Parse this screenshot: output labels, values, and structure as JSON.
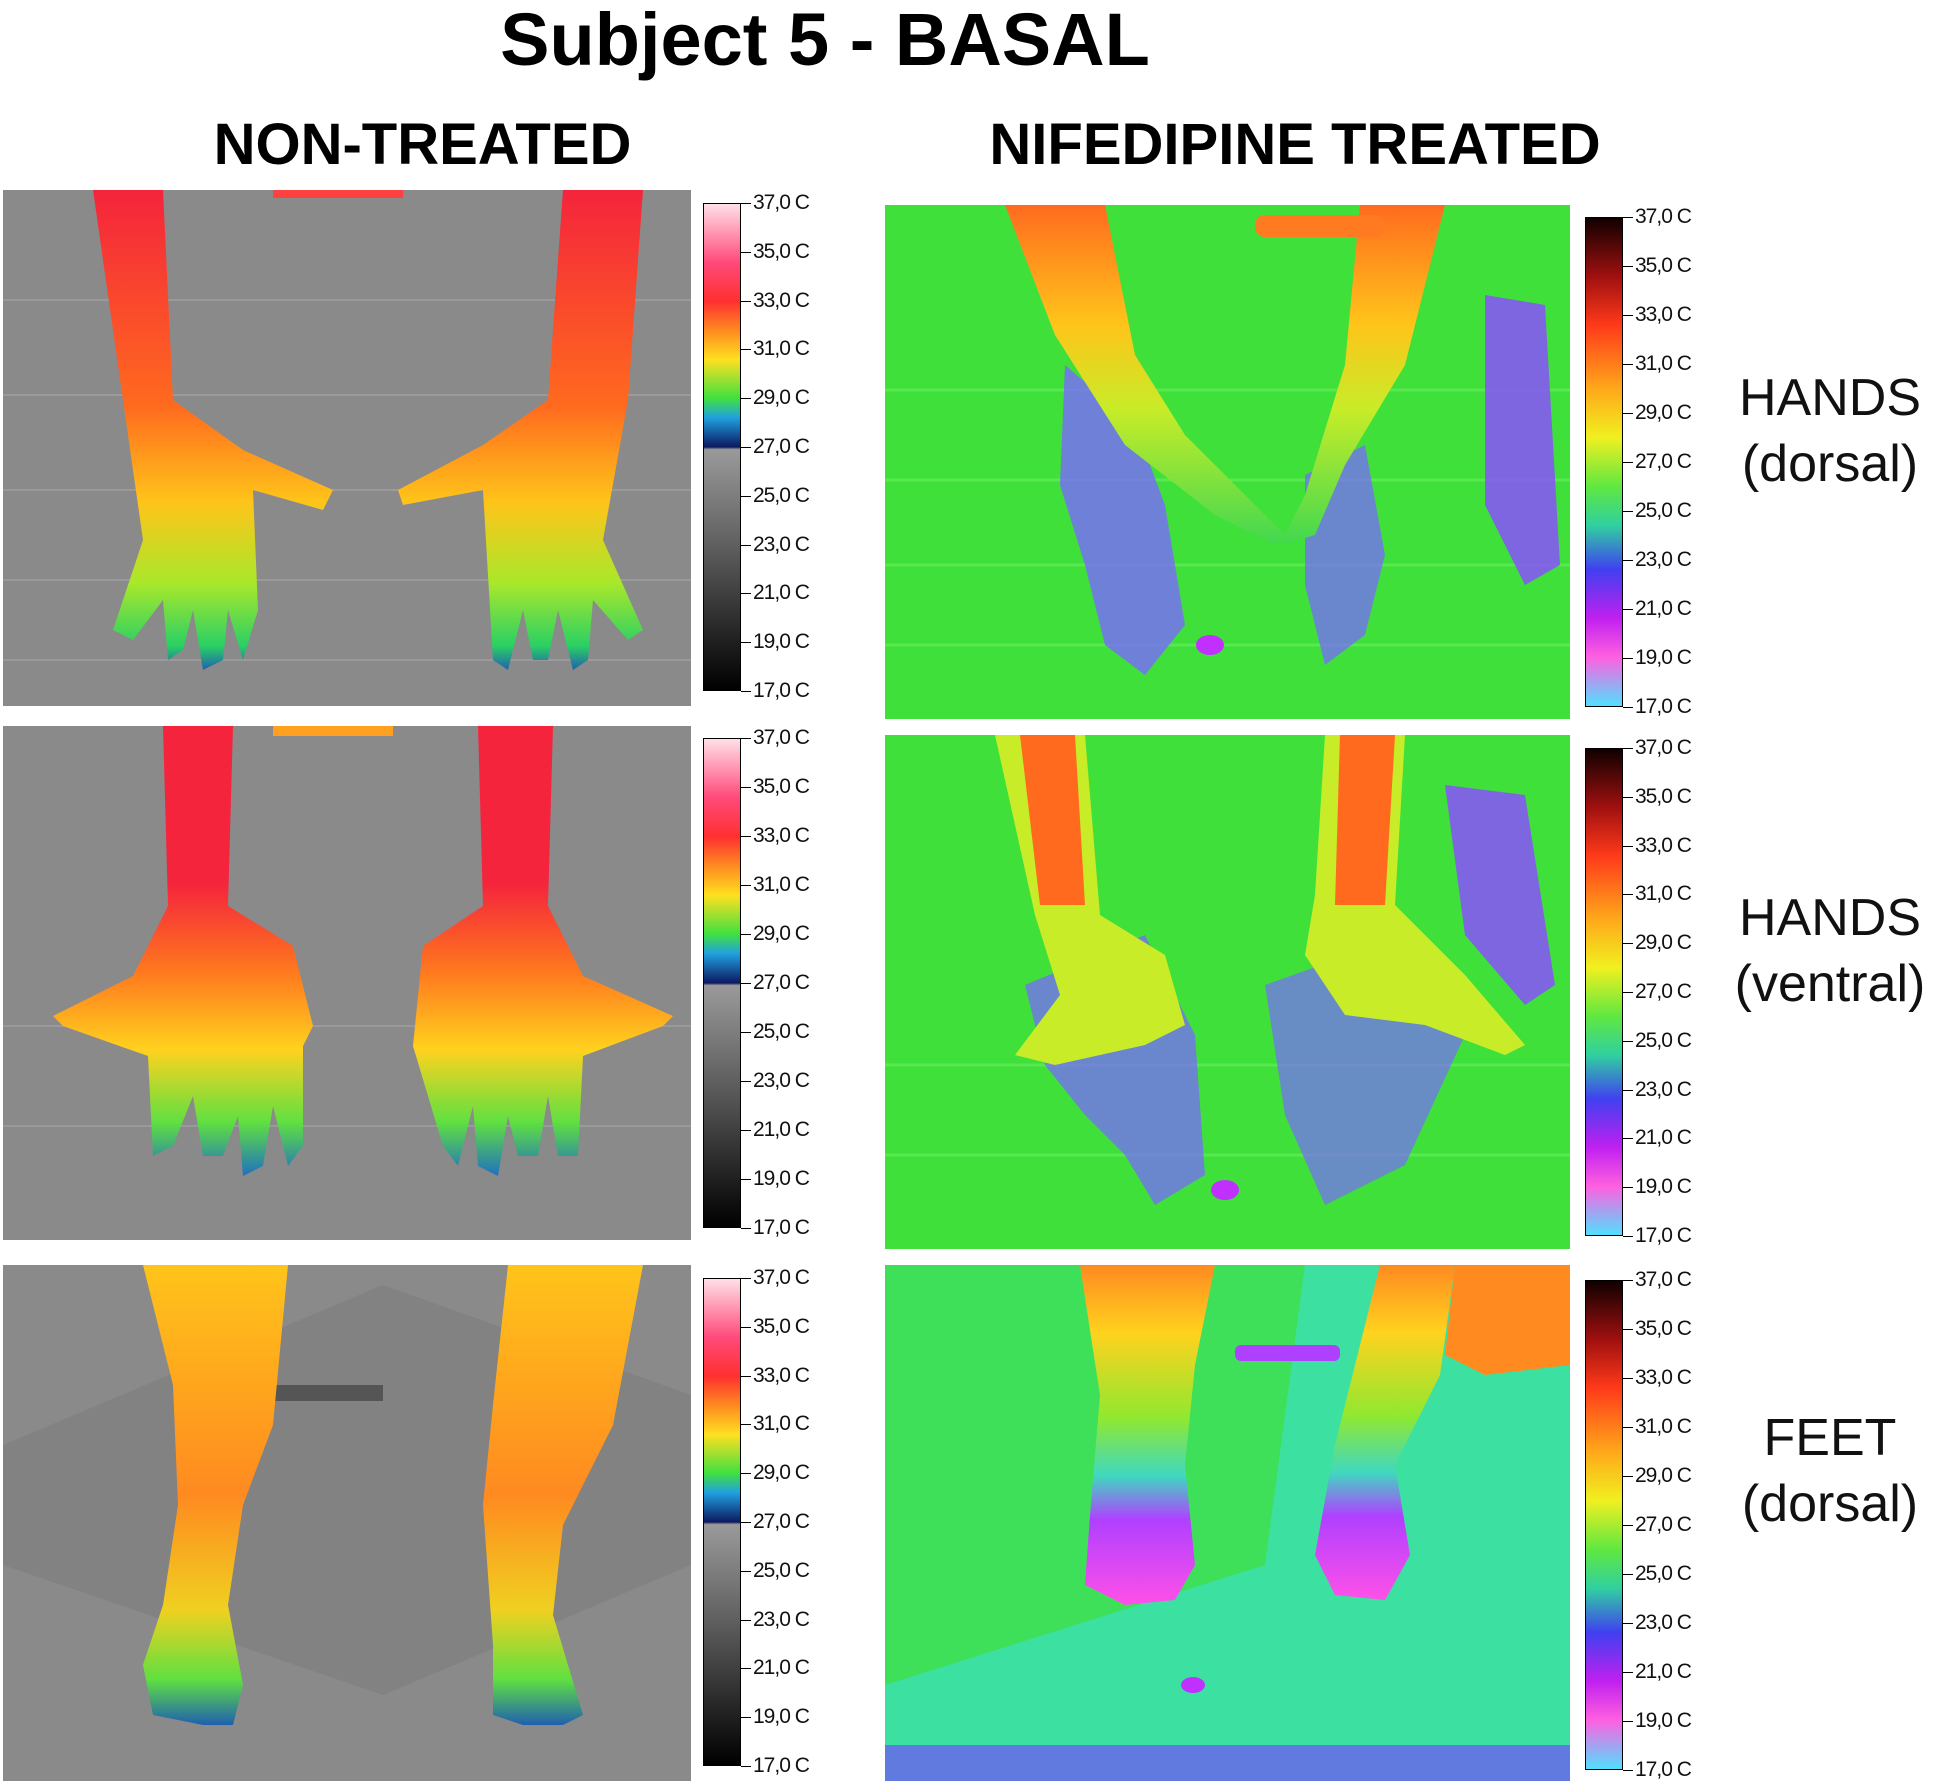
{
  "title": "Subject 5 - BASAL",
  "columns": {
    "left": "NON-TREATED",
    "right": "NIFEDIPINE TREATED"
  },
  "rows": [
    {
      "line1": "HANDS",
      "line2": "(dorsal)"
    },
    {
      "line1": "HANDS",
      "line2": "(ventral)"
    },
    {
      "line1": "FEET",
      "line2": "(dorsal)"
    }
  ],
  "scale_labels": [
    "37,0 C",
    "35,0 C",
    "33,0 C",
    "31,0 C",
    "29,0 C",
    "27,0 C",
    "25,0 C",
    "23,0 C",
    "21,0 C",
    "19,0 C",
    "17,0 C"
  ],
  "colors": {
    "non_treated_background": "#8a8a8a",
    "treated_background": "#3fe03a",
    "hot": "#f02a3c",
    "warm": "#ffd21e",
    "cool": "#3cd83c",
    "cold": "#8050ff"
  }
}
